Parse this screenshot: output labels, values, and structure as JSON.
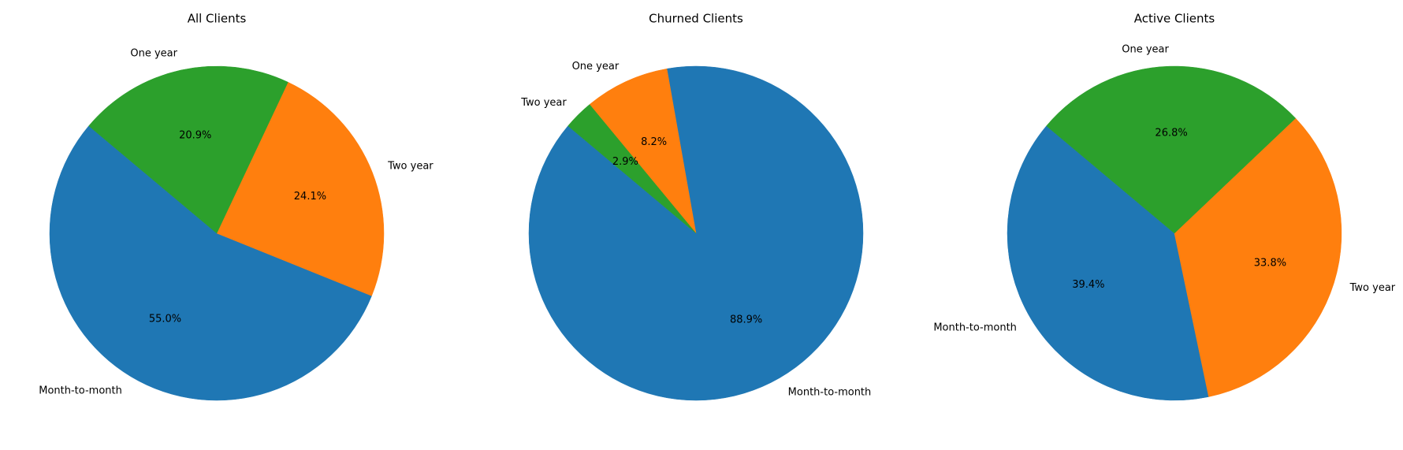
{
  "chart_data": [
    {
      "type": "pie",
      "title": "All Clients",
      "slices": [
        {
          "label": "Month-to-month",
          "value": 55.0,
          "pct_label": "55.0%",
          "color": "#1f77b4"
        },
        {
          "label": "Two year",
          "value": 24.1,
          "pct_label": "24.1%",
          "color": "#ff7f0e"
        },
        {
          "label": "One year",
          "value": 20.9,
          "pct_label": "20.9%",
          "color": "#2ca02c"
        }
      ]
    },
    {
      "type": "pie",
      "title": "Churned Clients",
      "slices": [
        {
          "label": "Month-to-month",
          "value": 88.9,
          "pct_label": "88.9%",
          "color": "#1f77b4"
        },
        {
          "label": "One year",
          "value": 8.2,
          "pct_label": "8.2%",
          "color": "#ff7f0e"
        },
        {
          "label": "Two year",
          "value": 2.9,
          "pct_label": "2.9%",
          "color": "#2ca02c"
        }
      ]
    },
    {
      "type": "pie",
      "title": "Active Clients",
      "slices": [
        {
          "label": "Month-to-month",
          "value": 39.4,
          "pct_label": "39.4%",
          "color": "#1f77b4"
        },
        {
          "label": "Two year",
          "value": 33.8,
          "pct_label": "33.8%",
          "color": "#ff7f0e"
        },
        {
          "label": "One year",
          "value": 26.8,
          "pct_label": "26.8%",
          "color": "#2ca02c"
        }
      ]
    }
  ]
}
